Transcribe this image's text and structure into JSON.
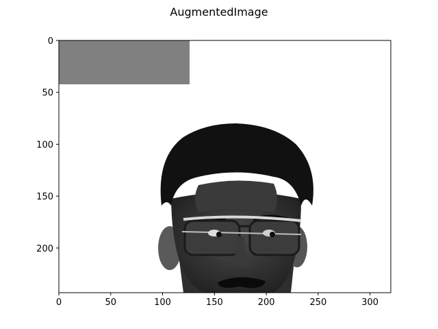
{
  "figure": {
    "title": "AugmentedImage",
    "background": "#ffffff"
  },
  "axes": {
    "x_ticks": [
      "0",
      "50",
      "100",
      "150",
      "200",
      "250",
      "300"
    ],
    "y_ticks": [
      "0",
      "50",
      "100",
      "150",
      "200"
    ],
    "x_range": [
      0,
      320
    ],
    "y_range": [
      0,
      243
    ],
    "y_inverted": true,
    "tick_values_x": [
      0,
      50,
      100,
      150,
      200,
      250,
      300
    ],
    "tick_values_y": [
      0,
      50,
      100,
      150,
      200
    ]
  },
  "image": {
    "colormap": "grayscale",
    "background_value": "#ffffff",
    "occlusion_patch": {
      "color": "#808080",
      "x_range": [
        0,
        126
      ],
      "y_range": [
        0,
        42
      ]
    },
    "subject": "face-with-glasses"
  }
}
